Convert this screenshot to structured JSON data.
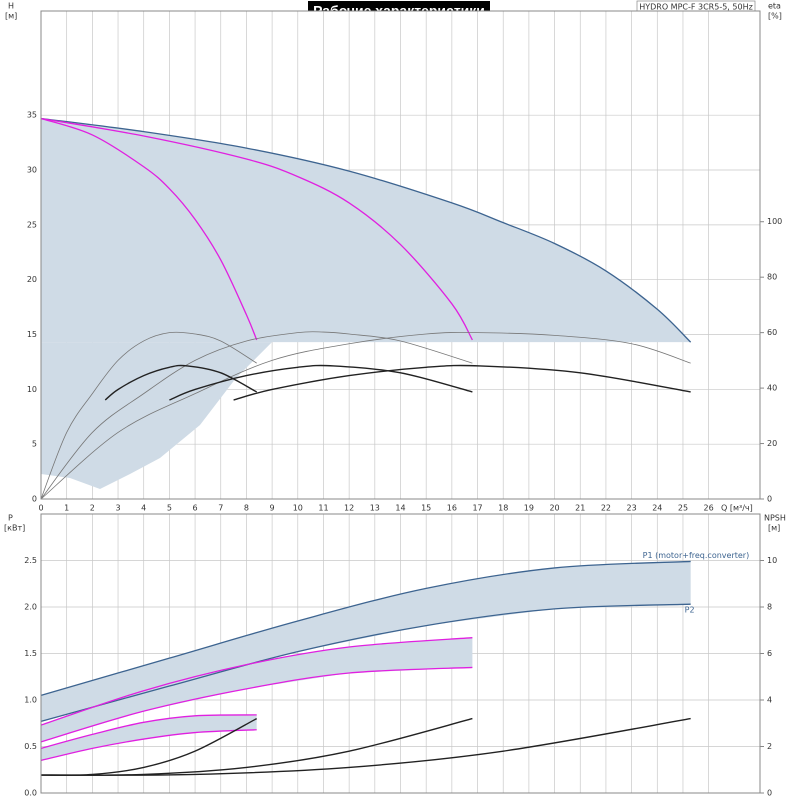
{
  "chart_data": [
    {
      "type": "line",
      "title": "Рабочие характеристики",
      "subtitle": "HYDRO MPC-F 3CR5-5, 50Hz",
      "y_label": "H",
      "y_unit": "[м]",
      "y2_label": "eta",
      "y2_unit": "[%]",
      "x_label": "Q [м³/ч]",
      "xlim": [
        0,
        28
      ],
      "xticks": [
        0,
        1,
        2,
        3,
        4,
        5,
        6,
        7,
        8,
        9,
        10,
        11,
        12,
        13,
        14,
        15,
        16,
        17,
        18,
        19,
        20,
        21,
        22,
        23,
        24,
        25,
        26
      ],
      "ylim": [
        0,
        44.5
      ],
      "yticks": [
        0,
        5,
        10,
        15,
        20,
        25,
        30,
        35
      ],
      "y2lim": [
        0,
        176
      ],
      "y2ticks": [
        0,
        20,
        40,
        60,
        80,
        100
      ],
      "grid": true,
      "series": [
        {
          "color": "#3d6490",
          "x": [
            0,
            4,
            8,
            12,
            16,
            18,
            20,
            22,
            24,
            25.3
          ],
          "values": [
            34.7,
            33.5,
            32.0,
            29.9,
            27.0,
            25.2,
            23.3,
            20.8,
            17.3,
            14.3
          ]
        },
        {
          "color": "#e020e0",
          "x": [
            0,
            2,
            4,
            5,
            6,
            7,
            8,
            8.4
          ],
          "values": [
            34.7,
            33.2,
            30.3,
            28.3,
            25.5,
            21.8,
            16.8,
            14.5
          ]
        },
        {
          "color": "#e020e0",
          "x": [
            0,
            4,
            8,
            10,
            12,
            14,
            16,
            16.8
          ],
          "values": [
            34.7,
            33.1,
            31.0,
            29.4,
            27.0,
            23.2,
            17.8,
            14.5
          ]
        },
        {
          "color": "#777777",
          "axis": "y2",
          "x": [
            0,
            1,
            2,
            3,
            4,
            5,
            6,
            7,
            8.4
          ],
          "values": [
            0,
            24,
            38,
            50,
            57,
            60,
            59.5,
            57,
            49
          ]
        },
        {
          "color": "#777777",
          "axis": "y2",
          "x": [
            0,
            2,
            4,
            6,
            8,
            10,
            11,
            12,
            14,
            16.8
          ],
          "values": [
            0,
            24,
            38,
            50,
            57,
            60,
            60.2,
            59.5,
            57,
            49
          ]
        },
        {
          "color": "#777777",
          "axis": "y2",
          "x": [
            0,
            3,
            6,
            9,
            12,
            15,
            17,
            20,
            23,
            25.3
          ],
          "values": [
            0,
            24,
            38,
            50,
            56,
            59.5,
            60,
            59,
            56,
            49
          ]
        },
        {
          "color": "#222222",
          "axis": "y2",
          "x": [
            2.5,
            3,
            4,
            5,
            5.7,
            7,
            8.4
          ],
          "values": [
            35.7,
            39.5,
            44.5,
            47.5,
            48,
            45.5,
            38.6
          ]
        },
        {
          "color": "#222222",
          "axis": "y2",
          "x": [
            5,
            6,
            8,
            10,
            11.4,
            14,
            16.8
          ],
          "values": [
            35.7,
            39.5,
            44.5,
            47.5,
            48,
            45.5,
            38.6
          ]
        },
        {
          "color": "#222222",
          "axis": "y2",
          "x": [
            7.5,
            9,
            12,
            15,
            17.1,
            21,
            25.3
          ],
          "values": [
            35.7,
            39.5,
            44.5,
            47.5,
            48,
            45.5,
            38.6
          ]
        }
      ]
    },
    {
      "type": "line",
      "y_label": "P",
      "y_unit": "[кВт]",
      "y2_label": "NPSH",
      "y2_unit": "[м]",
      "xlim": [
        0,
        28
      ],
      "ylim": [
        0,
        3.0
      ],
      "yticks": [
        {
          "value": 0,
          "label": "0.0"
        },
        0.5,
        {
          "value": 1,
          "label": "1.0"
        },
        1.5,
        {
          "value": 2,
          "label": "2.0"
        },
        2.5
      ],
      "y2lim": [
        0,
        12
      ],
      "y2ticks": [
        0,
        2,
        4,
        6,
        8,
        10
      ],
      "grid": true,
      "series": [
        {
          "name": "P1 (motor+freq.converter)",
          "color": "#3d6490",
          "x": [
            0,
            5,
            10,
            15,
            20,
            25.3
          ],
          "values": [
            1.05,
            1.45,
            1.85,
            2.2,
            2.42,
            2.49
          ]
        },
        {
          "name": "P2",
          "color": "#3d6490",
          "x": [
            0,
            5,
            10,
            15,
            20,
            25.3
          ],
          "values": [
            0.77,
            1.15,
            1.52,
            1.8,
            1.98,
            2.03
          ]
        },
        {
          "color": "#e020e0",
          "x": [
            0,
            4,
            8,
            12,
            16.8
          ],
          "values": [
            0.73,
            1.1,
            1.38,
            1.57,
            1.67
          ]
        },
        {
          "color": "#e020e0",
          "x": [
            0,
            4,
            8,
            12,
            16.8
          ],
          "values": [
            0.55,
            0.88,
            1.12,
            1.29,
            1.35
          ]
        },
        {
          "color": "#e020e0",
          "x": [
            0,
            2,
            4,
            6,
            8.4
          ],
          "values": [
            0.48,
            0.63,
            0.76,
            0.83,
            0.84
          ]
        },
        {
          "color": "#e020e0",
          "x": [
            0,
            2,
            4,
            6,
            8.4
          ],
          "values": [
            0.35,
            0.48,
            0.58,
            0.65,
            0.68
          ]
        },
        {
          "color": "#222222",
          "axis": "y2",
          "x": [
            0,
            2,
            4,
            6,
            8.4
          ],
          "values": [
            0.77,
            0.8,
            1.1,
            1.8,
            3.2
          ]
        },
        {
          "color": "#222222",
          "axis": "y2",
          "x": [
            0,
            4,
            8,
            12,
            16.8
          ],
          "values": [
            0.77,
            0.8,
            1.1,
            1.8,
            3.2
          ]
        },
        {
          "color": "#222222",
          "axis": "y2",
          "x": [
            0,
            6,
            12,
            18,
            25.3
          ],
          "values": [
            0.77,
            0.8,
            1.1,
            1.8,
            3.2
          ]
        }
      ]
    }
  ]
}
